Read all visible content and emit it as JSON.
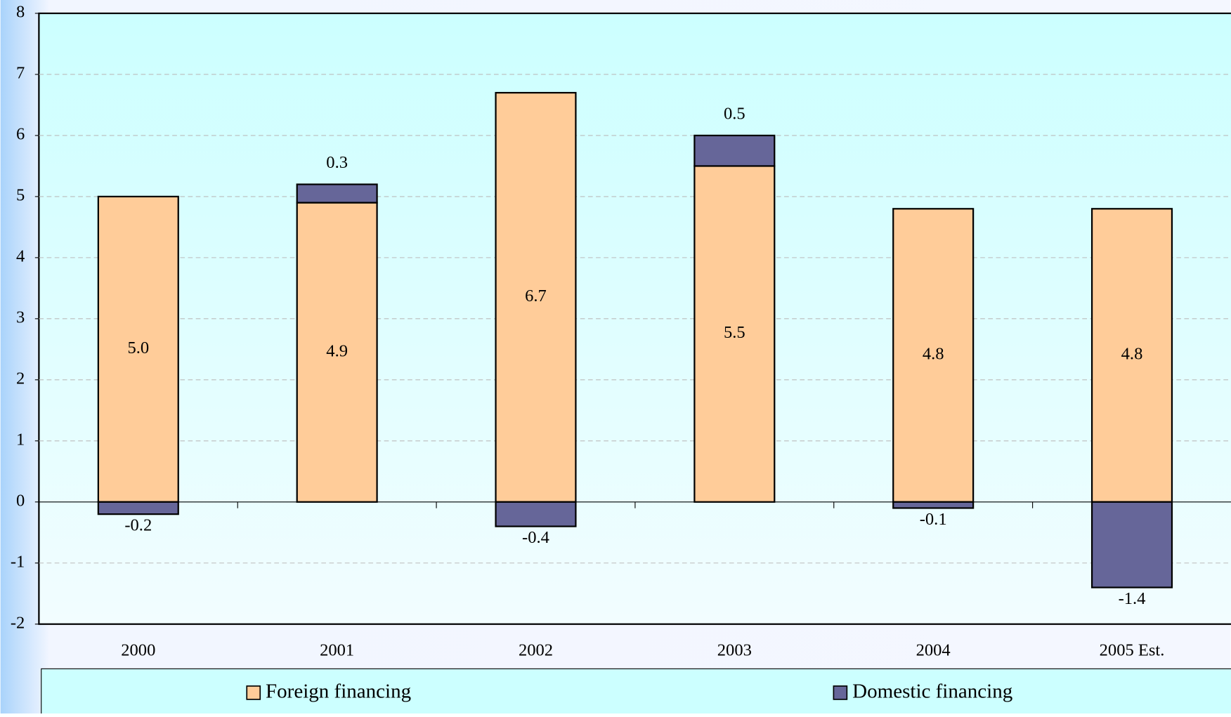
{
  "chart_data": {
    "type": "stacked-bar",
    "categories": [
      "2000",
      "2001",
      "2002",
      "2003",
      "2004",
      "2005 Est."
    ],
    "series": [
      {
        "name": "Foreign financing",
        "color": "#ffcc99",
        "values": [
          5.0,
          4.9,
          6.7,
          5.5,
          4.8,
          4.8
        ],
        "value_labels": [
          "5.0",
          "4.9",
          "6.7",
          "5.5",
          "4.8",
          "4.8"
        ]
      },
      {
        "name": "Domestic financing",
        "color": "#666699",
        "values": [
          -0.2,
          0.3,
          -0.4,
          0.5,
          -0.1,
          -1.4
        ]
      }
    ],
    "ylim": [
      -2,
      8
    ],
    "yticks": [
      -2,
      -1,
      0,
      1,
      2,
      3,
      4,
      5,
      6,
      7,
      8
    ],
    "grid": true,
    "legend": "bottom"
  }
}
